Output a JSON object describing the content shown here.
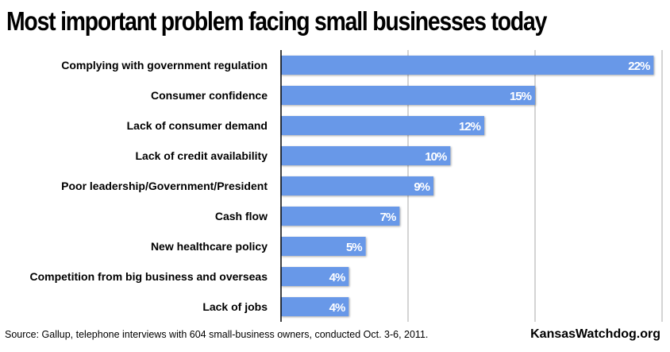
{
  "chart_data": {
    "type": "bar",
    "orientation": "horizontal",
    "title": "Most important problem facing small businesses today",
    "categories": [
      "Complying with government regulation",
      "Consumer confidence",
      "Lack of consumer demand",
      "Lack of credit availability",
      "Poor leadership/Government/President",
      "Cash flow",
      "New healthcare policy",
      "Competition from big business and overseas",
      "Lack of jobs"
    ],
    "values": [
      22,
      15,
      12,
      10,
      9,
      7,
      5,
      4,
      4
    ],
    "value_labels": [
      "22%",
      "15%",
      "12%",
      "10%",
      "9%",
      "7%",
      "5%",
      "4%",
      "4%"
    ],
    "xlim": [
      0,
      22.5
    ],
    "gridlines": [
      7.5,
      15,
      22.5
    ],
    "grid": true,
    "bar_color": "#6898E8",
    "xlabel": "",
    "ylabel": ""
  },
  "footer": {
    "source": "Source: Gallup, telephone interviews with 604 small-business owners, conducted Oct. 3-6, 2011.",
    "brand": "KansasWatchdog.org"
  }
}
